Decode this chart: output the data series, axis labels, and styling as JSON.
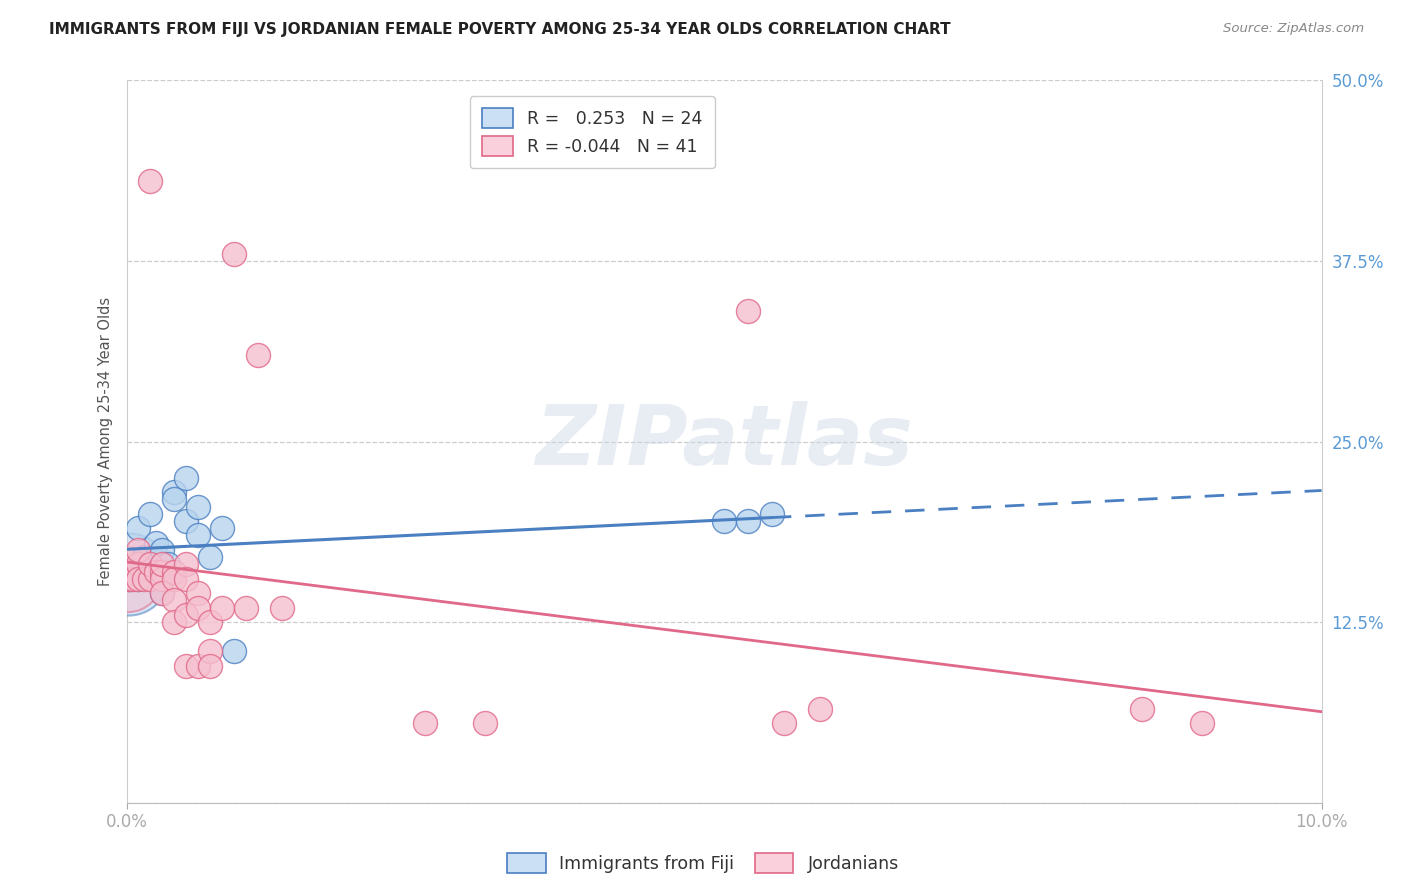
{
  "title": "IMMIGRANTS FROM FIJI VS JORDANIAN FEMALE POVERTY AMONG 25-34 YEAR OLDS CORRELATION CHART",
  "source": "Source: ZipAtlas.com",
  "ylabel": "Female Poverty Among 25-34 Year Olds",
  "x_min": 0.0,
  "x_max": 0.1,
  "y_min": 0.0,
  "y_max": 0.5,
  "fiji_R": 0.253,
  "fiji_N": 24,
  "jordan_R": -0.044,
  "jordan_N": 41,
  "fiji_color": "#b8d4ee",
  "fiji_line_color": "#4a7fc1",
  "jordan_color": "#f5c0d0",
  "jordan_line_color": "#e06888",
  "watermark_text": "ZIPatlas",
  "fiji_x": [
    0.0002,
    0.0005,
    0.001,
    0.001,
    0.0015,
    0.002,
    0.002,
    0.0025,
    0.003,
    0.003,
    0.003,
    0.0035,
    0.004,
    0.004,
    0.005,
    0.005,
    0.006,
    0.006,
    0.007,
    0.008,
    0.009,
    0.05,
    0.052,
    0.054
  ],
  "fiji_y": [
    0.155,
    0.16,
    0.19,
    0.155,
    0.17,
    0.165,
    0.2,
    0.18,
    0.155,
    0.175,
    0.145,
    0.165,
    0.215,
    0.21,
    0.225,
    0.195,
    0.205,
    0.185,
    0.17,
    0.19,
    0.105,
    0.195,
    0.195,
    0.2
  ],
  "jordan_x": [
    0.0002,
    0.0003,
    0.0005,
    0.001,
    0.001,
    0.001,
    0.0015,
    0.002,
    0.002,
    0.002,
    0.0025,
    0.003,
    0.003,
    0.003,
    0.003,
    0.004,
    0.004,
    0.004,
    0.004,
    0.005,
    0.005,
    0.005,
    0.005,
    0.006,
    0.006,
    0.006,
    0.007,
    0.007,
    0.007,
    0.008,
    0.009,
    0.01,
    0.011,
    0.013,
    0.025,
    0.03,
    0.052,
    0.055,
    0.058,
    0.085,
    0.09
  ],
  "jordan_y": [
    0.155,
    0.16,
    0.155,
    0.165,
    0.155,
    0.175,
    0.155,
    0.155,
    0.43,
    0.165,
    0.16,
    0.16,
    0.155,
    0.165,
    0.145,
    0.16,
    0.155,
    0.14,
    0.125,
    0.165,
    0.155,
    0.13,
    0.095,
    0.145,
    0.135,
    0.095,
    0.125,
    0.105,
    0.095,
    0.135,
    0.38,
    0.135,
    0.31,
    0.135,
    0.055,
    0.055,
    0.34,
    0.055,
    0.065,
    0.065,
    0.055
  ],
  "background_color": "#ffffff"
}
